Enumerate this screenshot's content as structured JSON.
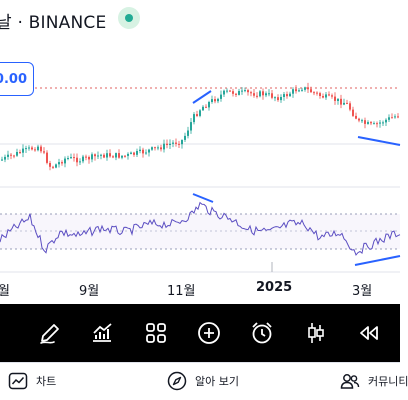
{
  "header": {
    "title": "날 · BINANCE"
  },
  "price_label": "0.00",
  "chart_data": {
    "type": "candlestick",
    "x_tick_labels": [
      "월",
      "9월",
      "11월",
      "2025",
      "3월"
    ]
  },
  "toolbar": {
    "items": [
      {
        "icon": "pencil-icon"
      },
      {
        "icon": "indicators-icon"
      },
      {
        "icon": "grid-icon"
      },
      {
        "icon": "add-circle-icon"
      },
      {
        "icon": "alarm-clock-icon"
      },
      {
        "icon": "candlestick-icon"
      },
      {
        "icon": "rewind-icon"
      }
    ]
  },
  "bottom_nav": {
    "chart_label": "차트",
    "explore_label": "알아 보기",
    "community_label": "커뮤니티"
  }
}
